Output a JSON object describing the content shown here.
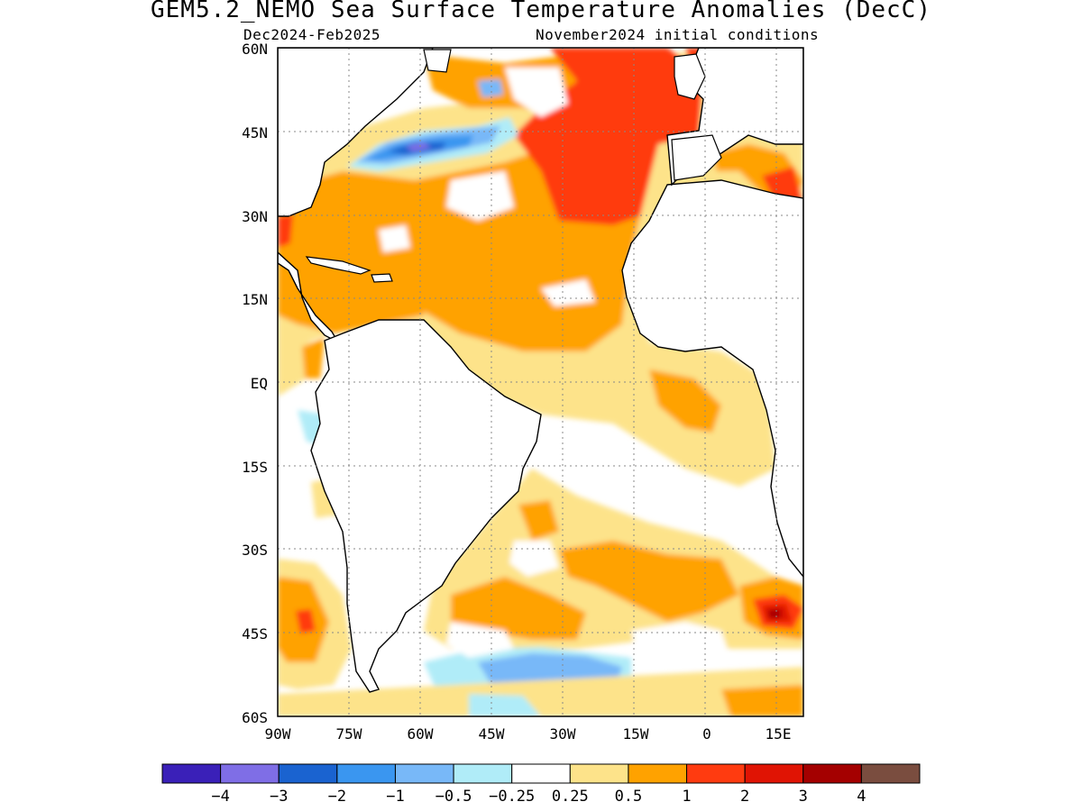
{
  "title": "GEM5.2_NEMO Sea Surface Temperature Anomalies (DecC)",
  "subtitle_left": "Dec2024-Feb2025",
  "subtitle_right": "November2024 initial conditions",
  "map": {
    "region": "Atlantic Ocean",
    "lon_range_deg": [
      -90,
      20
    ],
    "lat_range_deg": [
      -60,
      60
    ],
    "lat_ticks": [
      "60N",
      "45N",
      "30N",
      "15N",
      "EQ",
      "15S",
      "30S",
      "45S",
      "60S"
    ],
    "lon_ticks": [
      "90W",
      "75W",
      "60W",
      "45W",
      "30W",
      "15W",
      "0",
      "15E"
    ],
    "grid": "dotted",
    "land_color": "#ffffff"
  },
  "colorbar": {
    "colors": [
      "#3a20b8",
      "#7f6ee6",
      "#1a63d0",
      "#3a96f0",
      "#78b8f8",
      "#b0ecf8",
      "#ffffff",
      "#fde38a",
      "#ffa200",
      "#ff3b10",
      "#e01404",
      "#a40000",
      "#7a4d3f"
    ],
    "labels": [
      "−4",
      "−3",
      "−2",
      "−1",
      "−0.5",
      "−0.25",
      "0.25",
      "0.5",
      "1",
      "2",
      "3",
      "4"
    ]
  }
}
